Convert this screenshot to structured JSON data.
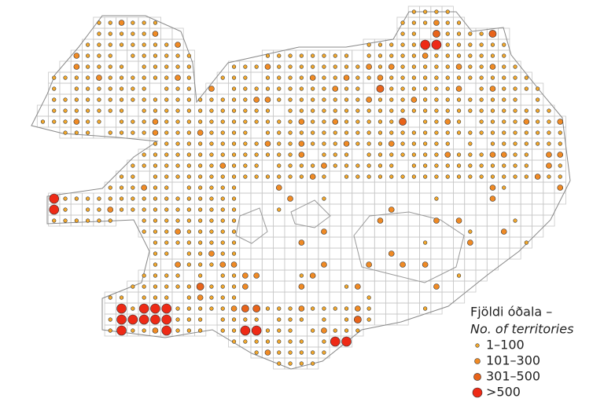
{
  "legend": {
    "title": "Fjöldi óðala –",
    "subtitle": "No. of territories",
    "items": [
      {
        "label": "1–100",
        "color": "#f4a92c"
      },
      {
        "label": "101–300",
        "color": "#f08a24"
      },
      {
        "label": "301–500",
        "color": "#e8631a"
      },
      {
        "label": ">500",
        "color": "#ee2a16"
      }
    ]
  }
}
